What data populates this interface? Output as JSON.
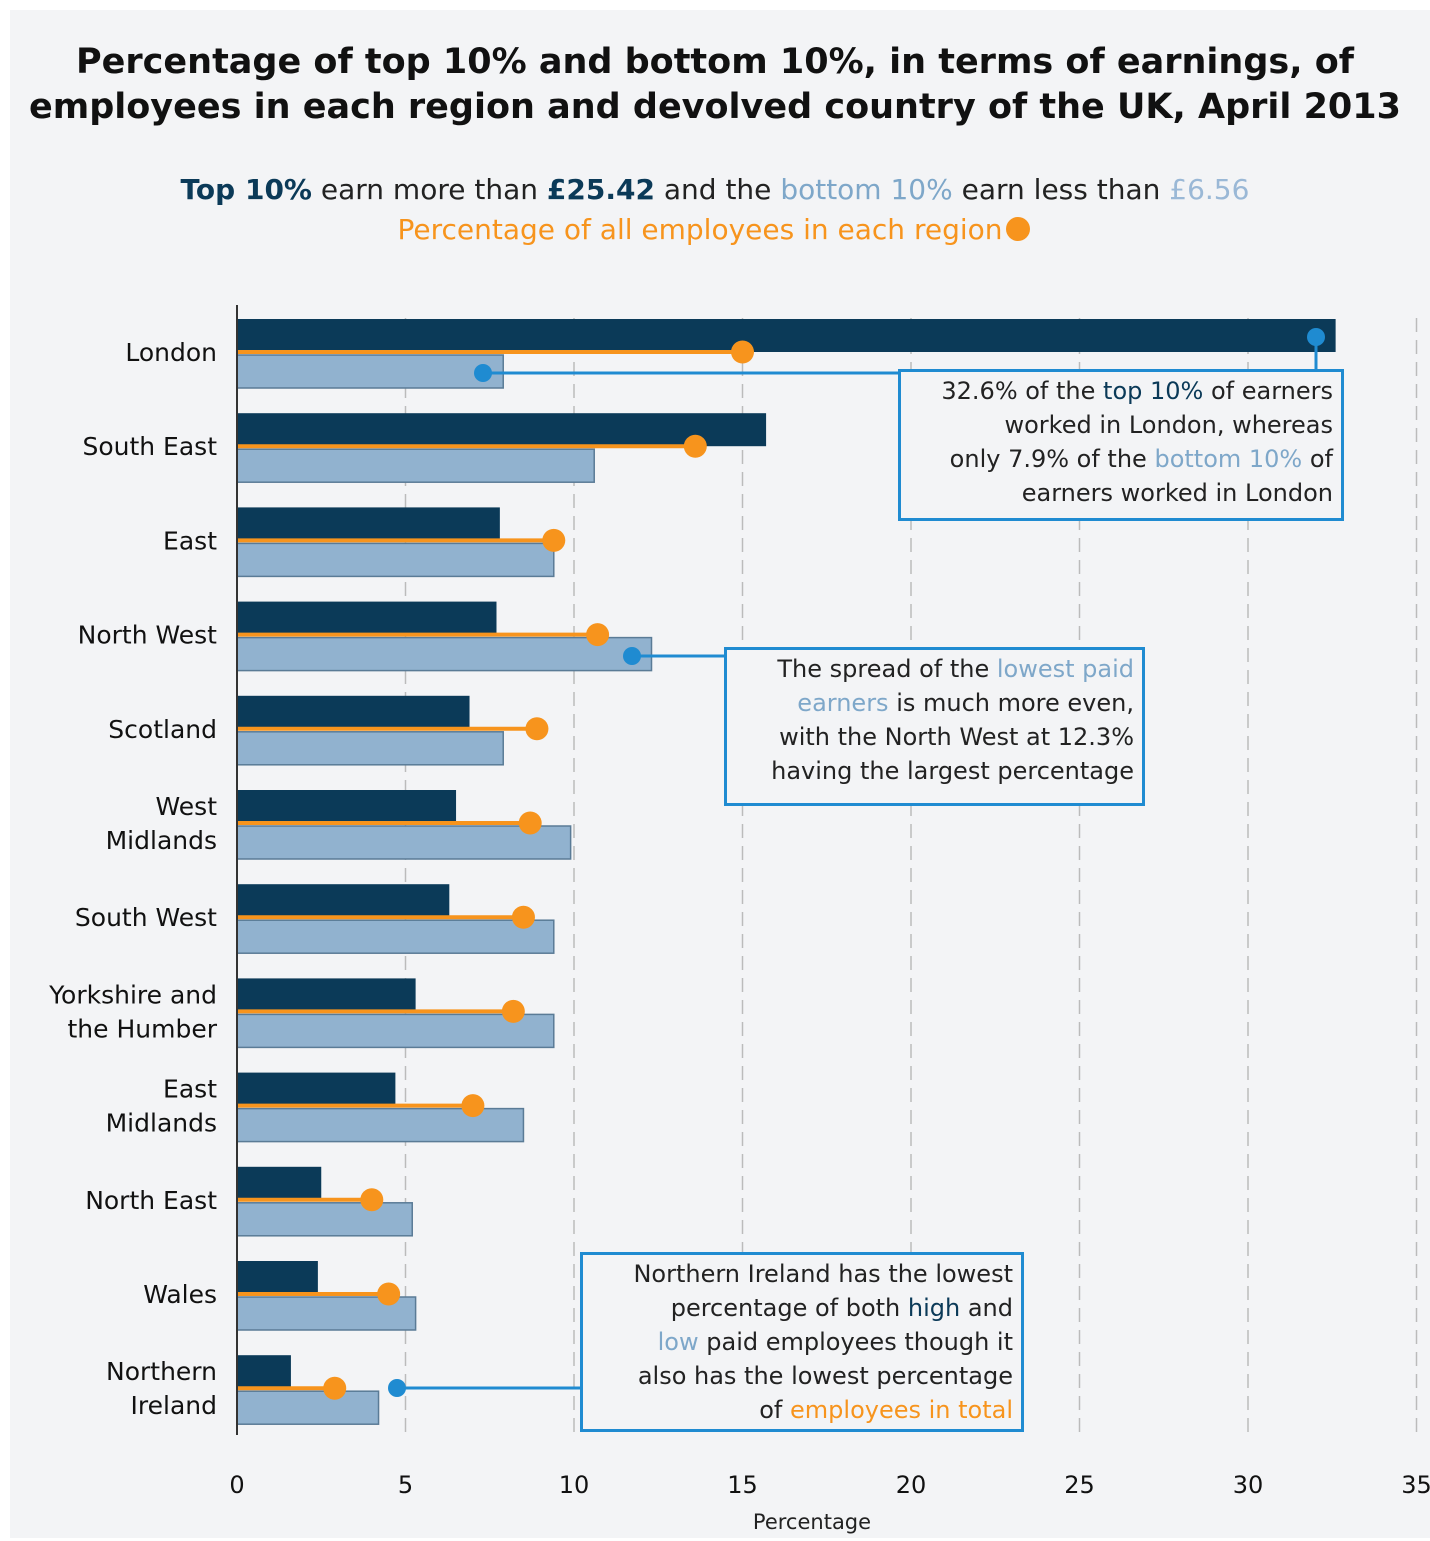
{
  "title_line1": "Percentage of top 10% and bottom 10%, in terms of earnings, of",
  "title_line2": "employees in each region and devolved country of the UK, April 2013",
  "subtitle": {
    "top_label": "Top 10%",
    "top_text": " earn more than ",
    "top_value": "£25.42",
    "and_text": " and the ",
    "bottom_label": "bottom 10%",
    "bottom_text": " earn less than ",
    "bottom_value": "£6.56",
    "legend_employees": "Percentage of all employees in each region"
  },
  "colors": {
    "top10": "#0b3a58",
    "bottom10": "#91b2cf",
    "employees": "#f7941d",
    "annotation": "#1f8bd1",
    "grid": "#bbbbbb"
  },
  "chart_data": {
    "type": "bar",
    "orientation": "horizontal",
    "categories": [
      [
        "London"
      ],
      [
        "South East"
      ],
      [
        "East"
      ],
      [
        "North West"
      ],
      [
        "Scotland"
      ],
      [
        "West",
        "Midlands"
      ],
      [
        "South West"
      ],
      [
        "Yorkshire and",
        "the Humber"
      ],
      [
        "East",
        "Midlands"
      ],
      [
        "North East"
      ],
      [
        "Wales"
      ],
      [
        "Northern",
        "Ireland"
      ]
    ],
    "series": [
      {
        "name": "Top 10%",
        "values": [
          32.6,
          15.7,
          7.8,
          7.7,
          6.9,
          6.5,
          6.3,
          5.3,
          4.7,
          2.5,
          2.4,
          1.6
        ]
      },
      {
        "name": "bottom 10%",
        "values": [
          7.9,
          10.6,
          9.4,
          12.3,
          7.9,
          9.9,
          9.4,
          9.4,
          8.5,
          5.2,
          5.3,
          4.2
        ]
      },
      {
        "name": "Percentage of all employees in each region",
        "values": [
          15.0,
          13.6,
          9.4,
          10.7,
          8.9,
          8.7,
          8.5,
          8.2,
          7.0,
          4.0,
          4.5,
          2.9
        ]
      }
    ],
    "xlabel": "Percentage",
    "xlim": [
      0,
      35
    ],
    "xticks": [
      0,
      5,
      10,
      15,
      20,
      25,
      30,
      35
    ],
    "grid": "vertical dashed"
  },
  "annotations": [
    {
      "lines": [
        [
          {
            "t": "32.6% of the "
          },
          {
            "t": "top 10%",
            "c": "top"
          },
          {
            "t": " of earners"
          }
        ],
        [
          {
            "t": "worked in London, whereas"
          }
        ],
        [
          {
            "t": "only 7.9% of the "
          },
          {
            "t": "bottom 10%",
            "c": "bot"
          },
          {
            "t": " of"
          }
        ],
        [
          {
            "t": "earners worked in London"
          }
        ]
      ]
    },
    {
      "lines": [
        [
          {
            "t": "The spread of the "
          },
          {
            "t": "lowest paid",
            "c": "bot"
          }
        ],
        [
          {
            "t": "earners",
            "c": "bot"
          },
          {
            "t": " is much more even,"
          }
        ],
        [
          {
            "t": "with the North West at 12.3%"
          }
        ],
        [
          {
            "t": "having the largest percentage"
          }
        ]
      ]
    },
    {
      "lines": [
        [
          {
            "t": "Northern Ireland has the lowest"
          }
        ],
        [
          {
            "t": "percentage of both "
          },
          {
            "t": "high",
            "c": "top"
          },
          {
            "t": " and"
          }
        ],
        [
          {
            "t": "low",
            "c": "bot"
          },
          {
            "t": " paid employees though it"
          }
        ],
        [
          {
            "t": "also has the lowest percentage"
          }
        ],
        [
          {
            "t": "of "
          },
          {
            "t": "employees in total",
            "c": "org"
          }
        ]
      ]
    }
  ]
}
